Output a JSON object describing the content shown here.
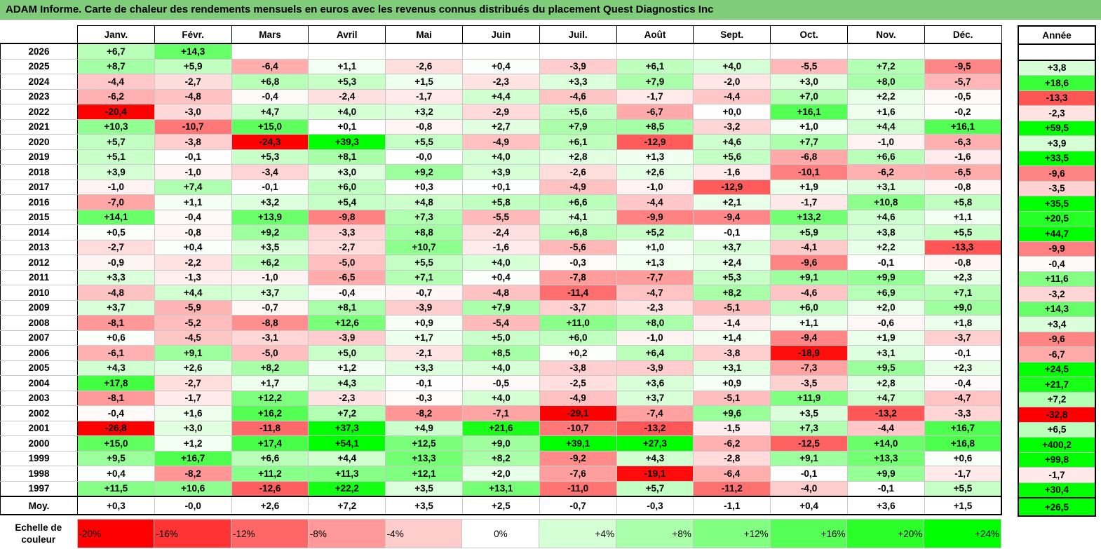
{
  "title": "ADAM Informe. Carte de chaleur des rendements mensuels en euros avec les revenus connus distribués du placement Quest Diagnostics Inc",
  "chart_data": {
    "type": "heatmap",
    "title": "ADAM Informe. Carte de chaleur des rendements mensuels en euros avec les revenus connus distribués du placement Quest Diagnostics Inc",
    "months": [
      "Janv.",
      "Févr.",
      "Mars",
      "Avril",
      "Mai",
      "Juin",
      "Juil.",
      "Août",
      "Sept.",
      "Oct.",
      "Nov.",
      "Déc."
    ],
    "year_header": "Année",
    "rows": [
      {
        "year": "2026",
        "values": [
          "+6,7",
          "+14,3",
          "",
          "",
          "",
          "",
          "",
          "",
          "",
          "",
          "",
          ""
        ],
        "annual": ""
      },
      {
        "year": "2025",
        "values": [
          "+8,7",
          "+5,9",
          "-6,4",
          "+1,1",
          "-2,6",
          "+0,4",
          "-3,9",
          "+6,1",
          "+4,0",
          "-5,5",
          "+7,2",
          "-9,5"
        ],
        "annual": "+3,8"
      },
      {
        "year": "2024",
        "values": [
          "-4,4",
          "-2,7",
          "+6,8",
          "+5,3",
          "+1,5",
          "-2,3",
          "+3,3",
          "+7,9",
          "-2,0",
          "+3,0",
          "+8,0",
          "-5,7"
        ],
        "annual": "+18,6"
      },
      {
        "year": "2023",
        "values": [
          "-6,2",
          "-4,8",
          "-0,4",
          "-2,4",
          "-1,7",
          "+4,4",
          "-4,6",
          "-1,7",
          "-4,4",
          "+7,0",
          "+2,2",
          "-0,5"
        ],
        "annual": "-13,3"
      },
      {
        "year": "2022",
        "values": [
          "-20,4",
          "-3,0",
          "+4,7",
          "+4,0",
          "+3,2",
          "-2,9",
          "+5,6",
          "-6,7",
          "+0,0",
          "+16,1",
          "+1,6",
          "-0,2"
        ],
        "annual": "-2,3"
      },
      {
        "year": "2021",
        "values": [
          "+10,3",
          "-10,7",
          "+15,0",
          "+0,1",
          "-0,8",
          "+2,7",
          "+7,9",
          "+8,5",
          "-3,2",
          "+1,0",
          "+4,4",
          "+16,1"
        ],
        "annual": "+59,5"
      },
      {
        "year": "2020",
        "values": [
          "+5,7",
          "-3,8",
          "-24,3",
          "+39,3",
          "+5,5",
          "-4,9",
          "+6,1",
          "-12,9",
          "+4,6",
          "+7,7",
          "-1,0",
          "-6,3"
        ],
        "annual": "+3,9"
      },
      {
        "year": "2019",
        "values": [
          "+5,1",
          "-0,1",
          "+5,3",
          "+8,1",
          "-0,0",
          "+4,0",
          "+2,8",
          "+1,3",
          "+5,6",
          "-6,8",
          "+6,6",
          "-1,6"
        ],
        "annual": "+33,5"
      },
      {
        "year": "2018",
        "values": [
          "+3,9",
          "-1,0",
          "-3,4",
          "+3,0",
          "+9,2",
          "+3,9",
          "-2,6",
          "+2,6",
          "-1,6",
          "-10,1",
          "-6,2",
          "-6,5"
        ],
        "annual": "-9,6"
      },
      {
        "year": "2017",
        "values": [
          "-1,0",
          "+7,4",
          "-0,1",
          "+6,0",
          "+0,3",
          "+0,1",
          "-4,9",
          "-1,0",
          "-12,9",
          "+1,9",
          "+3,1",
          "-0,8"
        ],
        "annual": "-3,5"
      },
      {
        "year": "2016",
        "values": [
          "-7,0",
          "+1,1",
          "+3,2",
          "+5,4",
          "+4,8",
          "+5,8",
          "+6,6",
          "-4,4",
          "+2,1",
          "-1,7",
          "+10,8",
          "+5,8"
        ],
        "annual": "+35,5"
      },
      {
        "year": "2015",
        "values": [
          "+14,1",
          "-0,4",
          "+13,9",
          "-9,8",
          "+7,3",
          "-5,5",
          "+4,1",
          "-9,9",
          "-9,4",
          "+13,2",
          "+4,6",
          "+1,1"
        ],
        "annual": "+20,5"
      },
      {
        "year": "2014",
        "values": [
          "+0,5",
          "-0,8",
          "+9,2",
          "-3,3",
          "+8,8",
          "-2,4",
          "+6,8",
          "+5,2",
          "-0,1",
          "+5,9",
          "+3,8",
          "+5,5"
        ],
        "annual": "+44,7"
      },
      {
        "year": "2013",
        "values": [
          "-2,7",
          "+0,4",
          "+3,5",
          "-2,7",
          "+10,7",
          "-1,6",
          "-5,6",
          "+1,0",
          "+3,7",
          "-4,1",
          "+2,2",
          "-13,3"
        ],
        "annual": "-9,9"
      },
      {
        "year": "2012",
        "values": [
          "-0,9",
          "-2,2",
          "+6,2",
          "-5,0",
          "+5,5",
          "+4,0",
          "-0,3",
          "+1,3",
          "+2,4",
          "-9,6",
          "-0,1",
          "-0,8"
        ],
        "annual": "-0,4"
      },
      {
        "year": "2011",
        "values": [
          "+3,3",
          "-1,3",
          "-1,0",
          "-6,5",
          "+7,1",
          "+0,4",
          "-7,8",
          "-7,7",
          "+5,3",
          "+9,1",
          "+9,9",
          "+2,3"
        ],
        "annual": "+11,6"
      },
      {
        "year": "2010",
        "values": [
          "-4,8",
          "+4,4",
          "+3,7",
          "-0,4",
          "-0,7",
          "-4,8",
          "-11,4",
          "-4,7",
          "+8,2",
          "-4,6",
          "+6,9",
          "+7,1"
        ],
        "annual": "-3,2"
      },
      {
        "year": "2009",
        "values": [
          "+3,7",
          "-5,9",
          "-0,7",
          "+8,1",
          "-3,9",
          "+7,9",
          "-3,7",
          "-2,3",
          "-5,1",
          "+6,0",
          "+2,0",
          "+9,0"
        ],
        "annual": "+14,3"
      },
      {
        "year": "2008",
        "values": [
          "-8,1",
          "-5,2",
          "-8,8",
          "+12,6",
          "+0,9",
          "-5,4",
          "+11,0",
          "+8,0",
          "-1,4",
          "+1,1",
          "-0,6",
          "+1,8"
        ],
        "annual": "+3,4"
      },
      {
        "year": "2007",
        "values": [
          "+0,6",
          "-4,5",
          "-3,1",
          "-3,9",
          "+1,7",
          "+5,0",
          "+6,0",
          "-1,0",
          "+1,4",
          "-9,4",
          "+1,9",
          "-3,7"
        ],
        "annual": "-9,6"
      },
      {
        "year": "2006",
        "values": [
          "-6,1",
          "+9,1",
          "-5,0",
          "+5,0",
          "-2,1",
          "+8,5",
          "+0,2",
          "+6,4",
          "-3,8",
          "-18,9",
          "+3,1",
          "-0,1"
        ],
        "annual": "-6,7"
      },
      {
        "year": "2005",
        "values": [
          "+4,3",
          "+2,6",
          "+8,2",
          "+1,2",
          "+3,3",
          "+4,0",
          "-3,8",
          "-3,9",
          "+3,1",
          "-7,3",
          "+9,5",
          "+2,3"
        ],
        "annual": "+24,5"
      },
      {
        "year": "2004",
        "values": [
          "+17,8",
          "-2,7",
          "+1,7",
          "+4,3",
          "-0,1",
          "-0,5",
          "-2,5",
          "+3,6",
          "+0,9",
          "-3,5",
          "+2,8",
          "-0,4"
        ],
        "annual": "+21,7"
      },
      {
        "year": "2003",
        "values": [
          "-8,1",
          "-1,7",
          "+12,2",
          "-2,3",
          "-0,3",
          "+4,0",
          "-4,9",
          "+3,7",
          "-5,1",
          "+11,9",
          "+4,7",
          "-4,7"
        ],
        "annual": "+7,2"
      },
      {
        "year": "2002",
        "values": [
          "-0,4",
          "+1,6",
          "+16,2",
          "+7,2",
          "-8,2",
          "-7,1",
          "-29,1",
          "-7,4",
          "+9,6",
          "+3,5",
          "-13,2",
          "-3,3"
        ],
        "annual": "-32,8"
      },
      {
        "year": "2001",
        "values": [
          "-26,8",
          "+3,0",
          "-11,8",
          "+37,3",
          "+4,9",
          "+21,6",
          "-10,7",
          "-13,2",
          "-1,5",
          "+7,3",
          "-4,4",
          "+16,7"
        ],
        "annual": "+6,5"
      },
      {
        "year": "2000",
        "values": [
          "+15,0",
          "+1,2",
          "+17,4",
          "+54,1",
          "+12,5",
          "+9,0",
          "+39,1",
          "+27,3",
          "-6,2",
          "-12,5",
          "+14,0",
          "+16,8"
        ],
        "annual": "+400,2"
      },
      {
        "year": "1999",
        "values": [
          "+9,5",
          "+16,7",
          "+6,6",
          "+4,4",
          "+13,3",
          "+8,2",
          "-9,2",
          "+4,3",
          "-2,8",
          "+9,1",
          "+13,3",
          "+0,6"
        ],
        "annual": "+99,8"
      },
      {
        "year": "1998",
        "values": [
          "+0,4",
          "-8,2",
          "+11,2",
          "+11,3",
          "+12,1",
          "+2,0",
          "-7,6",
          "-19,1",
          "-6,4",
          "-0,1",
          "+9,9",
          "-1,7"
        ],
        "annual": "-1,7"
      },
      {
        "year": "1997",
        "values": [
          "+11,5",
          "+10,6",
          "-12,6",
          "+22,2",
          "+3,5",
          "+13,1",
          "-11,0",
          "+5,7",
          "-11,2",
          "-4,0",
          "-0,1",
          "+5,5"
        ],
        "annual": "+30,4"
      }
    ],
    "average": {
      "label": "Moy.",
      "values": [
        "+0,3",
        "-0,0",
        "+2,6",
        "+7,2",
        "+3,5",
        "+2,5",
        "-0,7",
        "-0,3",
        "-1,1",
        "+0,4",
        "+3,6",
        "+1,5"
      ],
      "annual": "+26,5"
    },
    "scale": {
      "label": "Echelle de couleur",
      "steps": [
        "-20%",
        "-16%",
        "-12%",
        "-8%",
        "-4%",
        "0%",
        "+4%",
        "+8%",
        "+12%",
        "+16%",
        "+20%",
        "+24%"
      ]
    },
    "colors": {
      "negative": "#ff0000",
      "neutral": "#ffffff",
      "positive": "#00ff00"
    }
  }
}
